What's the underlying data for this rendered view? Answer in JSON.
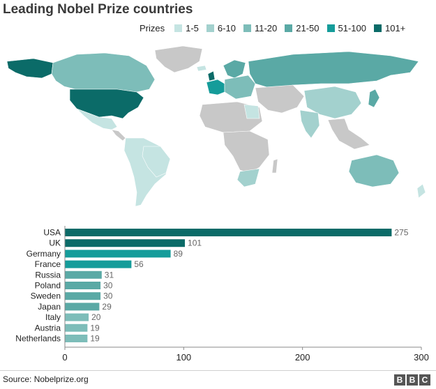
{
  "title": "Leading Nobel Prize countries",
  "legend": {
    "label": "Prizes",
    "items": [
      {
        "label": "1-5",
        "color": "#c5e4e2"
      },
      {
        "label": "6-10",
        "color": "#a3d1ce"
      },
      {
        "label": "11-20",
        "color": "#7dbdb9"
      },
      {
        "label": "21-50",
        "color": "#5aa9a5"
      },
      {
        "label": "51-100",
        "color": "#159c9a"
      },
      {
        "label": "101+",
        "color": "#0b6b68"
      }
    ]
  },
  "colors": {
    "no_data": "#c8c8c8",
    "bar_101": "#0b6b68",
    "bar_51": "#159c9a",
    "bar_21": "#5aa9a5",
    "bar_11": "#7dbdb9"
  },
  "chart_data": {
    "type": "bar",
    "orientation": "horizontal",
    "categories": [
      "USA",
      "UK",
      "Germany",
      "France",
      "Russia",
      "Poland",
      "Sweden",
      "Japan",
      "Italy",
      "Austria",
      "Netherlands"
    ],
    "values": [
      275,
      101,
      89,
      56,
      31,
      30,
      30,
      29,
      20,
      19,
      19
    ],
    "xlim": [
      0,
      300
    ],
    "xticks": [
      0,
      100,
      200,
      300
    ],
    "xlabel": "",
    "ylabel": ""
  },
  "source": "Source: Nobelprize.org",
  "logo": "BBC"
}
